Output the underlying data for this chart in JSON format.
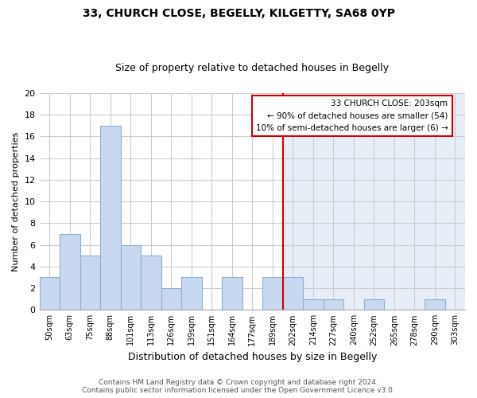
{
  "title": "33, CHURCH CLOSE, BEGELLY, KILGETTY, SA68 0YP",
  "subtitle": "Size of property relative to detached houses in Begelly",
  "xlabel": "Distribution of detached houses by size in Begelly",
  "ylabel": "Number of detached properties",
  "footer_line1": "Contains HM Land Registry data © Crown copyright and database right 2024.",
  "footer_line2": "Contains public sector information licensed under the Open Government Licence v3.0.",
  "bins": [
    "50sqm",
    "63sqm",
    "75sqm",
    "88sqm",
    "101sqm",
    "113sqm",
    "126sqm",
    "139sqm",
    "151sqm",
    "164sqm",
    "177sqm",
    "189sqm",
    "202sqm",
    "214sqm",
    "227sqm",
    "240sqm",
    "252sqm",
    "265sqm",
    "278sqm",
    "290sqm",
    "303sqm"
  ],
  "counts": [
    3,
    7,
    5,
    17,
    6,
    5,
    2,
    3,
    0,
    3,
    0,
    3,
    3,
    1,
    1,
    0,
    1,
    0,
    0,
    1,
    0
  ],
  "bar_color": "#c8d8f0",
  "bar_edge_color": "#8ab0d0",
  "vline_index": 12,
  "vertical_line_color": "#cc0000",
  "ylim": [
    0,
    20
  ],
  "yticks": [
    0,
    2,
    4,
    6,
    8,
    10,
    12,
    14,
    16,
    18,
    20
  ],
  "grid_color": "#cccccc",
  "bg_color": "#ffffff",
  "plot_bg_left": "#ffffff",
  "plot_bg_right": "#e8eef8",
  "annotation_title": "33 CHURCH CLOSE: 203sqm",
  "annotation_line1": "← 90% of detached houses are smaller (54)",
  "annotation_line2": "10% of semi-detached houses are larger (6) →",
  "annotation_box_color": "#ffffff",
  "annotation_box_edge": "#cc0000",
  "title_fontsize": 10,
  "subtitle_fontsize": 9,
  "ylabel_fontsize": 8,
  "xlabel_fontsize": 9,
  "tick_fontsize": 8,
  "xtick_fontsize": 7,
  "footer_fontsize": 6.5
}
